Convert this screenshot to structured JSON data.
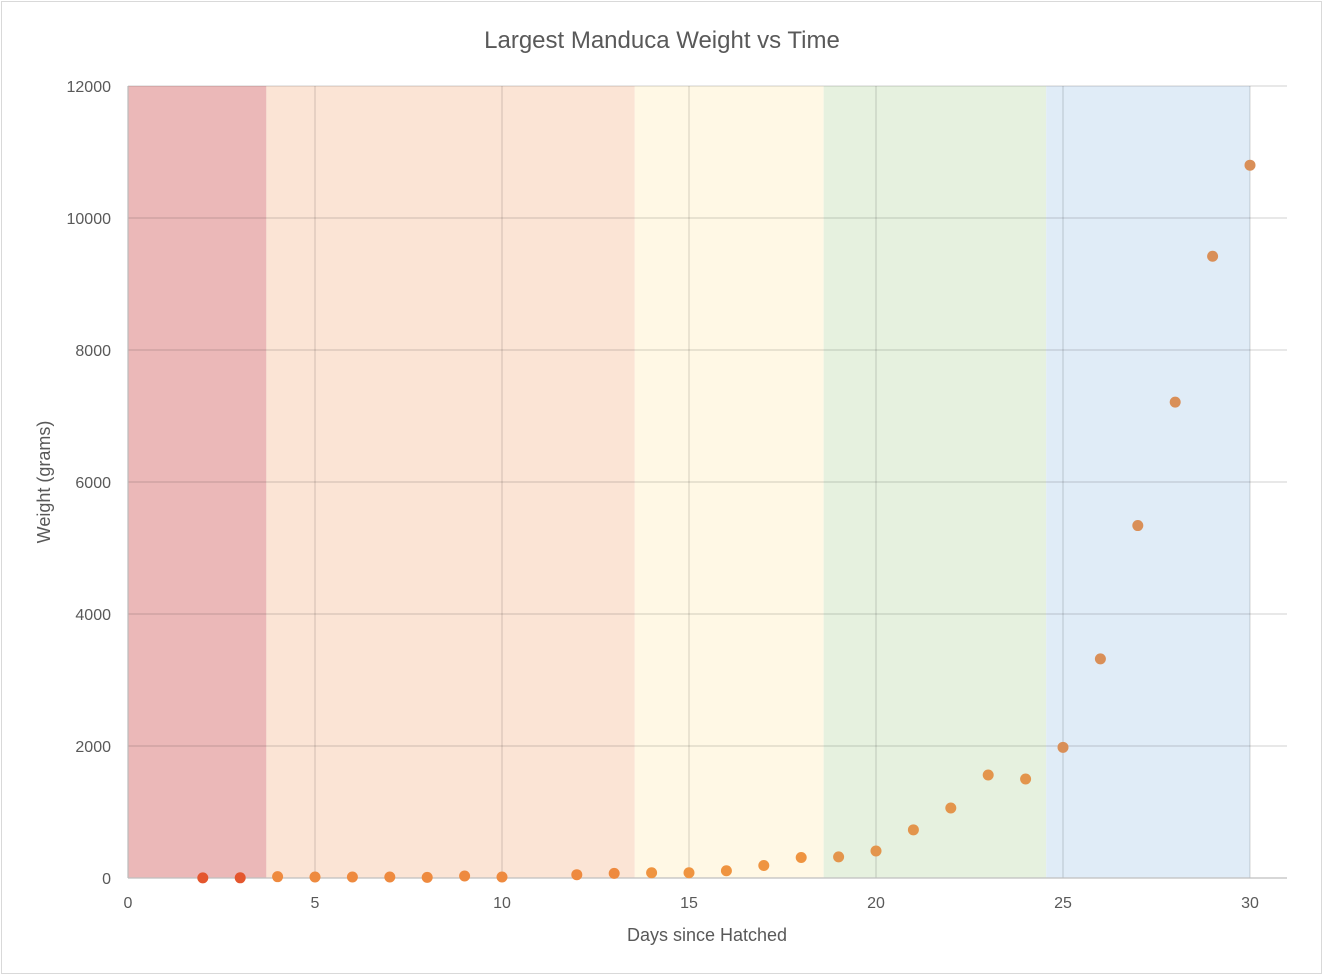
{
  "chart_data": {
    "type": "scatter",
    "title": "Largest Manduca Weight vs Time",
    "xlabel": "Days since Hatched",
    "ylabel": "Weight (grams)",
    "xlim": [
      0,
      30
    ],
    "ylim": [
      0,
      12000
    ],
    "xticks": [
      0,
      5,
      10,
      15,
      20,
      25,
      30
    ],
    "yticks": [
      0,
      2000,
      4000,
      6000,
      8000,
      10000,
      12000
    ],
    "grid": true,
    "bands": [
      {
        "from": 0,
        "to": 3.7,
        "color": "#ebb8b8"
      },
      {
        "from": 3.7,
        "to": 13.55,
        "color": "#fbe4d5"
      },
      {
        "from": 13.55,
        "to": 18.6,
        "color": "#fff8e5"
      },
      {
        "from": 18.6,
        "to": 24.55,
        "color": "#e6f1df"
      },
      {
        "from": 24.55,
        "to": 30,
        "color": "#e0ecf7"
      }
    ],
    "points": [
      {
        "x": 2,
        "y": 2,
        "color": "#e4562e"
      },
      {
        "x": 3,
        "y": 3,
        "color": "#e4562e"
      },
      {
        "x": 4,
        "y": 20,
        "color": "#ee8a3f"
      },
      {
        "x": 5,
        "y": 15,
        "color": "#ee8a3f"
      },
      {
        "x": 6,
        "y": 15,
        "color": "#ee8a3f"
      },
      {
        "x": 7,
        "y": 15,
        "color": "#ee8a3f"
      },
      {
        "x": 8,
        "y": 10,
        "color": "#ee8a3f"
      },
      {
        "x": 9,
        "y": 30,
        "color": "#ee8a3f"
      },
      {
        "x": 10,
        "y": 15,
        "color": "#ee8a3f"
      },
      {
        "x": 12,
        "y": 50,
        "color": "#ee8a3f"
      },
      {
        "x": 13,
        "y": 70,
        "color": "#ee8a3f"
      },
      {
        "x": 14,
        "y": 80,
        "color": "#ef9440"
      },
      {
        "x": 15,
        "y": 80,
        "color": "#ef9440"
      },
      {
        "x": 16,
        "y": 110,
        "color": "#ef9440"
      },
      {
        "x": 17,
        "y": 190,
        "color": "#ef9440"
      },
      {
        "x": 18,
        "y": 310,
        "color": "#ef9440"
      },
      {
        "x": 19,
        "y": 320,
        "color": "#e3954c"
      },
      {
        "x": 20,
        "y": 410,
        "color": "#e3954c"
      },
      {
        "x": 21,
        "y": 730,
        "color": "#e3954c"
      },
      {
        "x": 22,
        "y": 1060,
        "color": "#e3954c"
      },
      {
        "x": 23,
        "y": 1560,
        "color": "#e3954c"
      },
      {
        "x": 24,
        "y": 1500,
        "color": "#e3954c"
      },
      {
        "x": 25,
        "y": 1980,
        "color": "#d98f58"
      },
      {
        "x": 26,
        "y": 3320,
        "color": "#d98f58"
      },
      {
        "x": 27,
        "y": 5340,
        "color": "#d98f58"
      },
      {
        "x": 28,
        "y": 7210,
        "color": "#d98f58"
      },
      {
        "x": 29,
        "y": 9420,
        "color": "#d98f58"
      },
      {
        "x": 30,
        "y": 10800,
        "color": "#d98f58"
      }
    ]
  }
}
